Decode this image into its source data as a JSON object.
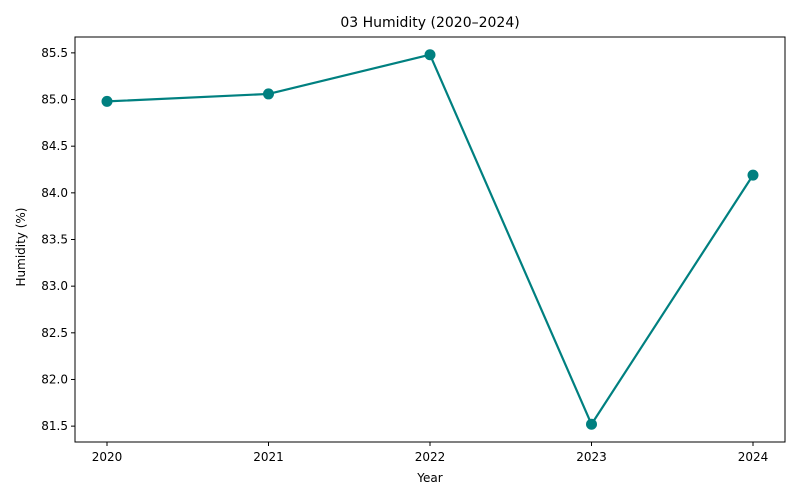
{
  "chart_data": {
    "type": "line",
    "title": "03 Humidity (2020–2024)",
    "xlabel": "Year",
    "ylabel": "Humidity (%)",
    "x": [
      "2020",
      "2021",
      "2022",
      "2023",
      "2024"
    ],
    "series": [
      {
        "values": [
          84.98,
          85.06,
          85.48,
          81.52,
          84.19
        ]
      }
    ],
    "ylim": [
      81.33,
      85.67
    ],
    "yticks": [
      81.5,
      82.0,
      82.5,
      83.0,
      83.5,
      84.0,
      84.5,
      85.0,
      85.5
    ],
    "ytick_labels": [
      "81.5",
      "82.0",
      "82.5",
      "83.0",
      "83.5",
      "84.0",
      "84.5",
      "85.0",
      "85.5"
    ],
    "grid": false,
    "legend": "none",
    "colors": {
      "line": "#008080",
      "axes": "#000000"
    }
  }
}
